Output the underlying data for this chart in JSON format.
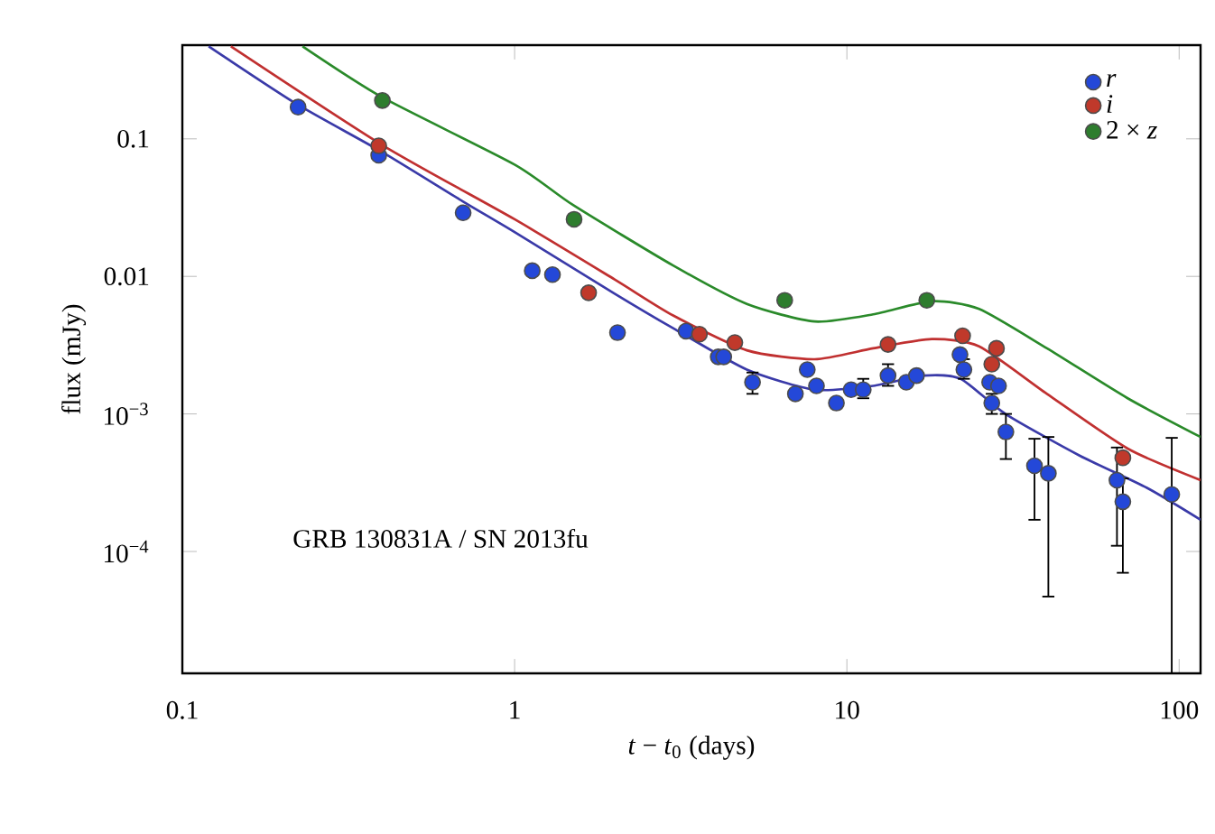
{
  "chart_data": {
    "type": "scatter",
    "xlabel": "*t* − *t*$_{0}$ (days)",
    "ylabel": "flux (mJy)",
    "annotations": [
      "GRB 130831A / SN 2013fu"
    ],
    "log": "xy",
    "xlim": [
      0.1,
      116
    ],
    "ylim": [
      1.3e-05,
      0.48
    ],
    "xticks": [
      0.1,
      1,
      10,
      100
    ],
    "yticks": [
      {
        "value": 0.0001,
        "label": "10$^{−4}$"
      },
      {
        "value": 0.001,
        "label": "10$^{−3}$"
      },
      0.01,
      0.1
    ],
    "legend": "top right",
    "series": [
      {
        "type": "line",
        "marker": "none",
        "color": "#3a3aa8",
        "x": [
          0.12,
          0.22,
          0.4,
          0.7,
          1,
          2,
          3,
          5,
          8,
          12,
          17,
          22,
          30,
          50,
          80,
          116
        ],
        "values": [
          0.47,
          0.18,
          0.08,
          0.035,
          0.021,
          0.0075,
          0.0042,
          0.0021,
          0.0015,
          0.0016,
          0.0019,
          0.0018,
          0.001,
          0.0005,
          0.00029,
          0.00017
        ]
      },
      {
        "type": "line",
        "marker": "none",
        "color": "#c03030",
        "x": [
          0.14,
          0.4,
          1,
          2,
          3,
          5,
          8,
          12,
          18,
          25,
          40,
          70,
          116
        ],
        "values": [
          0.47,
          0.09,
          0.026,
          0.0095,
          0.0052,
          0.0029,
          0.0025,
          0.003,
          0.0035,
          0.0031,
          0.0014,
          0.00056,
          0.00033
        ]
      },
      {
        "type": "line",
        "marker": "none",
        "color": "#2a8a2a",
        "x": [
          0.23,
          0.4,
          1,
          1.5,
          3,
          5,
          8,
          12,
          18,
          25,
          40,
          70,
          116
        ],
        "values": [
          0.47,
          0.2,
          0.065,
          0.033,
          0.012,
          0.0063,
          0.0047,
          0.0053,
          0.0066,
          0.0058,
          0.003,
          0.0013,
          0.00068
        ]
      },
      {
        "marker": "circle",
        "name": "*r*",
        "color": "#2448d8",
        "x": [
          0.223,
          0.39,
          0.7,
          1.13,
          1.3,
          2.04,
          3.28,
          4.1,
          4.26,
          5.2,
          7.0,
          7.6,
          8.1,
          9.3,
          10.3,
          11.2,
          13.3,
          15.1,
          16.2,
          21.9,
          22.5,
          26.9,
          27.3,
          28.6,
          30.1,
          36.7,
          40.4,
          65,
          67.7,
          95
        ],
        "values": [
          0.17,
          0.076,
          0.029,
          0.011,
          0.0103,
          0.0039,
          0.004,
          0.0026,
          0.0026,
          0.0017,
          0.0014,
          0.0021,
          0.0016,
          0.0012,
          0.0015,
          0.0015,
          0.0019,
          0.0017,
          0.0019,
          0.0027,
          0.0021,
          0.0017,
          0.0012,
          0.0016,
          0.00074,
          0.00042,
          0.00037,
          0.00033,
          0.00023,
          0.00026
        ],
        "errors": [
          null,
          null,
          null,
          null,
          null,
          null,
          null,
          null,
          null,
          [
            0.0014,
            0.002
          ],
          null,
          null,
          null,
          null,
          null,
          [
            0.0013,
            0.0018
          ],
          [
            0.0016,
            0.0023
          ],
          null,
          null,
          null,
          [
            0.0018,
            0.0025
          ],
          null,
          [
            0.001,
            0.0014
          ],
          null,
          [
            0.00047,
            0.001
          ],
          [
            0.00017,
            0.00066
          ],
          [
            4.7e-05,
            0.00068
          ],
          [
            0.00011,
            0.00057
          ],
          [
            7e-05,
            0.00034
          ],
          [
            1.3e-05,
            0.00067
          ]
        ]
      },
      {
        "marker": "circle",
        "name": "*i*",
        "color": "#c0392b",
        "x": [
          0.39,
          1.67,
          3.6,
          4.6,
          13.3,
          22.3,
          27.3,
          28.2,
          67.7
        ],
        "values": [
          0.089,
          0.0076,
          0.0038,
          0.0033,
          0.0032,
          0.0037,
          0.0023,
          0.003,
          0.00048
        ]
      },
      {
        "marker": "circle",
        "name": "2 × *z*",
        "color": "#2e7d2e",
        "x": [
          0.4,
          1.51,
          6.5,
          17.4
        ],
        "values": [
          0.19,
          0.026,
          0.0067,
          0.0067
        ]
      }
    ]
  }
}
